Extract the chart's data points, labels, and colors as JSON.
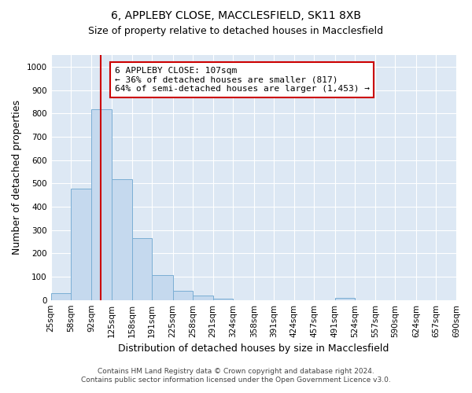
{
  "title_line1": "6, APPLEBY CLOSE, MACCLESFIELD, SK11 8XB",
  "title_line2": "Size of property relative to detached houses in Macclesfield",
  "xlabel": "Distribution of detached houses by size in Macclesfield",
  "ylabel": "Number of detached properties",
  "footer_line1": "Contains HM Land Registry data © Crown copyright and database right 2024.",
  "footer_line2": "Contains public sector information licensed under the Open Government Licence v3.0.",
  "bar_edges": [
    25,
    58,
    92,
    125,
    158,
    191,
    225,
    258,
    291,
    324,
    358,
    391,
    424,
    457,
    491,
    524,
    557,
    590,
    624,
    657,
    690
  ],
  "bar_heights": [
    30,
    478,
    817,
    517,
    265,
    108,
    40,
    18,
    5,
    0,
    0,
    0,
    0,
    0,
    10,
    0,
    0,
    0,
    0,
    0
  ],
  "bar_color": "#c5d9ee",
  "bar_edge_color": "#7aaed4",
  "property_size": 107,
  "vline_color": "#cc0000",
  "annotation_text": "6 APPLEBY CLOSE: 107sqm\n← 36% of detached houses are smaller (817)\n64% of semi-detached houses are larger (1,453) →",
  "annotation_box_color": "#ffffff",
  "annotation_box_edge_color": "#cc0000",
  "ylim": [
    0,
    1050
  ],
  "yticks": [
    0,
    100,
    200,
    300,
    400,
    500,
    600,
    700,
    800,
    900,
    1000
  ],
  "background_color": "#dde8f4",
  "grid_color": "#ffffff",
  "fig_bg_color": "#ffffff",
  "title_fontsize": 10,
  "subtitle_fontsize": 9,
  "axis_label_fontsize": 9,
  "tick_fontsize": 7.5,
  "annotation_fontsize": 8,
  "footer_fontsize": 6.5
}
